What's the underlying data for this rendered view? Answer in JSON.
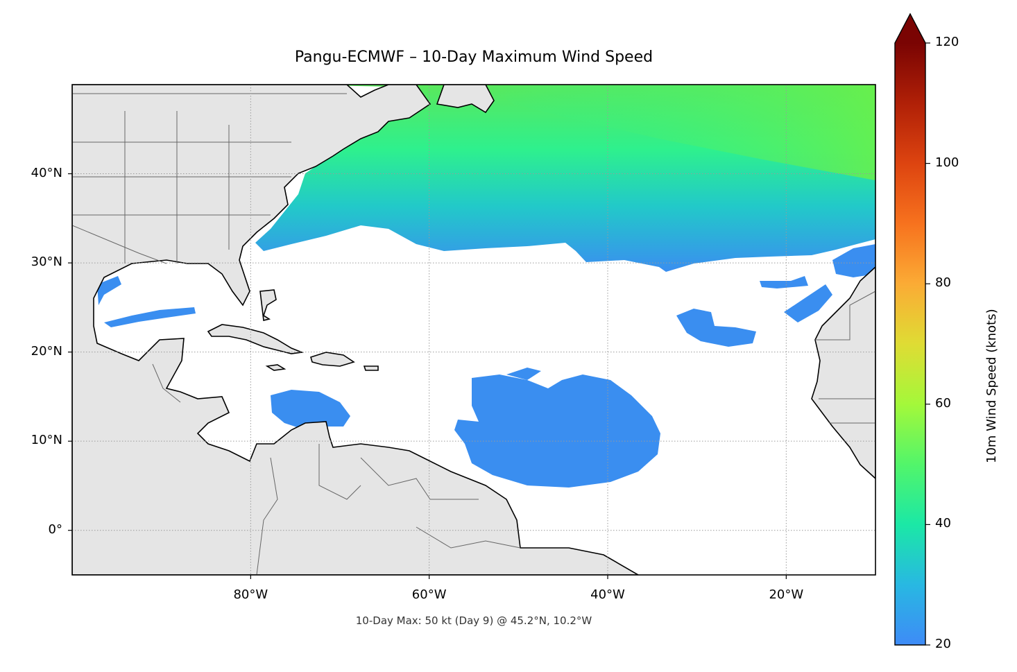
{
  "title": "Pangu-ECMWF – 10-Day Maximum Wind Speed",
  "footer_note": "10-Day Max: 50 kt (Day 9) @ 45.2°N, 10.2°W",
  "map": {
    "extent": {
      "lon_min": -100,
      "lon_max": -10,
      "lat_min": -5,
      "lat_max": 50
    },
    "lat_ticks": [
      {
        "value": 40,
        "label": "40°N"
      },
      {
        "value": 30,
        "label": "30°N"
      },
      {
        "value": 20,
        "label": "20°N"
      },
      {
        "value": 10,
        "label": "10°N"
      },
      {
        "value": 0,
        "label": "0°"
      }
    ],
    "lon_ticks": [
      {
        "value": -80,
        "label": "80°W"
      },
      {
        "value": -60,
        "label": "60°W"
      },
      {
        "value": -40,
        "label": "40°W"
      },
      {
        "value": -20,
        "label": "20°W"
      }
    ],
    "gridlines": "dotted",
    "land_color": "#e5e5e5",
    "coastline_color": "#000000",
    "border_color": "#666666"
  },
  "colorbar": {
    "label": "10m Wind Speed (knots)",
    "min": 20,
    "max": 120,
    "extend": "max",
    "colormap": "turbo",
    "ticks": [
      {
        "value": 20,
        "label": "20"
      },
      {
        "value": 40,
        "label": "40"
      },
      {
        "value": 60,
        "label": "60"
      },
      {
        "value": 80,
        "label": "80"
      },
      {
        "value": 100,
        "label": "100"
      },
      {
        "value": 120,
        "label": "120"
      }
    ]
  },
  "max_point": {
    "wind_kt": 50,
    "day": 9,
    "lat": 45.2,
    "lon": -10.2
  }
}
